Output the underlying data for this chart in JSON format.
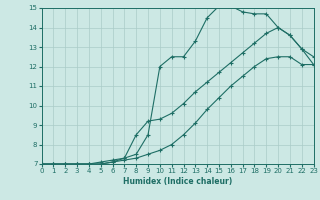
{
  "xlabel": "Humidex (Indice chaleur)",
  "xlim": [
    0,
    23
  ],
  "ylim": [
    7,
    15
  ],
  "yticks": [
    7,
    8,
    9,
    10,
    11,
    12,
    13,
    14,
    15
  ],
  "xticks": [
    0,
    1,
    2,
    3,
    4,
    5,
    6,
    7,
    8,
    9,
    10,
    11,
    12,
    13,
    14,
    15,
    16,
    17,
    18,
    19,
    20,
    21,
    22,
    23
  ],
  "bg_color": "#cce8e4",
  "line_color": "#1e6e65",
  "grid_color": "#aaccc8",
  "line1_x": [
    0,
    1,
    2,
    3,
    4,
    5,
    6,
    7,
    8,
    9,
    10,
    11,
    12,
    13,
    14,
    15,
    16,
    17,
    18,
    19,
    20,
    21,
    22,
    23
  ],
  "line1_y": [
    7,
    7,
    7,
    7,
    7,
    7.1,
    7.2,
    7.3,
    7.5,
    8.5,
    12.0,
    12.5,
    12.5,
    13.3,
    14.5,
    15.1,
    15.1,
    14.8,
    14.7,
    14.7,
    14.0,
    13.6,
    12.9,
    12.5
  ],
  "line2_x": [
    0,
    1,
    2,
    3,
    4,
    5,
    6,
    7,
    8,
    9,
    10,
    11,
    12,
    13,
    14,
    15,
    16,
    17,
    18,
    19,
    20,
    21,
    22,
    23
  ],
  "line2_y": [
    7,
    7,
    7,
    7,
    7,
    7,
    7.1,
    7.2,
    7.3,
    7.5,
    7.7,
    8.0,
    8.5,
    9.1,
    9.8,
    10.4,
    11.0,
    11.5,
    12.0,
    12.4,
    12.5,
    12.5,
    12.1,
    12.1
  ],
  "line3_x": [
    0,
    1,
    2,
    3,
    4,
    5,
    6,
    7,
    8,
    9,
    10,
    11,
    12,
    13,
    14,
    15,
    16,
    17,
    18,
    19,
    20,
    21,
    22,
    23
  ],
  "line3_y": [
    7,
    7,
    7,
    7,
    7,
    7,
    7.1,
    7.3,
    8.5,
    9.2,
    9.3,
    9.6,
    10.1,
    10.7,
    11.2,
    11.7,
    12.2,
    12.7,
    13.2,
    13.7,
    14.0,
    13.6,
    12.9,
    12.1
  ]
}
